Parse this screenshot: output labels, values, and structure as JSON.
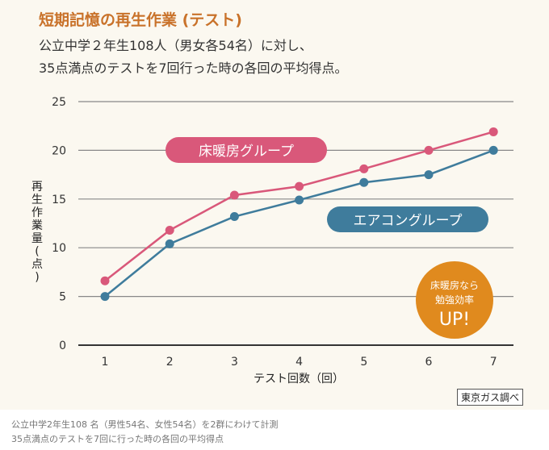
{
  "header": {
    "title": "短期記憶の再生作業 (テスト)",
    "subtitle_line1": "公立中学２年生108人（男女各54名）に対し、",
    "subtitle_line2": "35点満点のテストを7回行った時の各回の平均得点。"
  },
  "chart_data": {
    "type": "line",
    "xlabel": "テスト回数（回）",
    "ylabel": "再生作業量(点)",
    "x": [
      1,
      2,
      3,
      4,
      5,
      6,
      7
    ],
    "ylim": [
      0,
      25
    ],
    "yticks": [
      0,
      5,
      10,
      15,
      20,
      25
    ],
    "grid": true,
    "series": [
      {
        "name": "床暖房グループ",
        "color": "#d9587a",
        "values": [
          6.6,
          11.8,
          15.4,
          16.3,
          18.1,
          20.0,
          21.9
        ]
      },
      {
        "name": "エアコングループ",
        "color": "#3f7c9c",
        "values": [
          5.0,
          10.4,
          13.2,
          14.9,
          16.7,
          17.5,
          20.0
        ]
      }
    ],
    "annotation": {
      "line1": "床暖房なら",
      "line2": "勉強効率",
      "line3": "UP!",
      "color": "#e08a1e"
    }
  },
  "source": "東京ガス調べ",
  "caption": {
    "line1": "公立中学2年生108 名（男性54名、女性54名）を2群にわけて計測",
    "line2": "35点満点のテストを7回に行った時の各回の平均得点"
  }
}
